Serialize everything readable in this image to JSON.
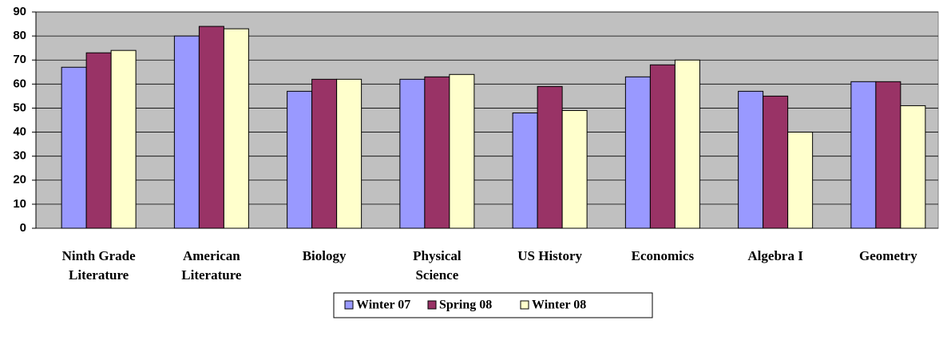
{
  "chart_data": {
    "type": "bar",
    "categories": [
      "Ninth Grade Literature",
      "American Literature",
      "Biology",
      "Physical Science",
      "US History",
      "Economics",
      "Algebra I",
      "Geometry"
    ],
    "series": [
      {
        "name": "Winter 07",
        "color": "#9999ff",
        "values": [
          67,
          80,
          57,
          62,
          48,
          63,
          57,
          61
        ]
      },
      {
        "name": "Spring 08",
        "color": "#993366",
        "values": [
          73,
          84,
          62,
          63,
          59,
          68,
          55,
          61
        ]
      },
      {
        "name": "Winter 08",
        "color": "#ffffcc",
        "values": [
          74,
          83,
          62,
          64,
          49,
          70,
          40,
          51
        ]
      }
    ],
    "ylim": [
      0,
      90
    ],
    "yticks": [
      0,
      10,
      20,
      30,
      40,
      50,
      60,
      70,
      80,
      90
    ],
    "grid": true,
    "legend": "bottom"
  }
}
